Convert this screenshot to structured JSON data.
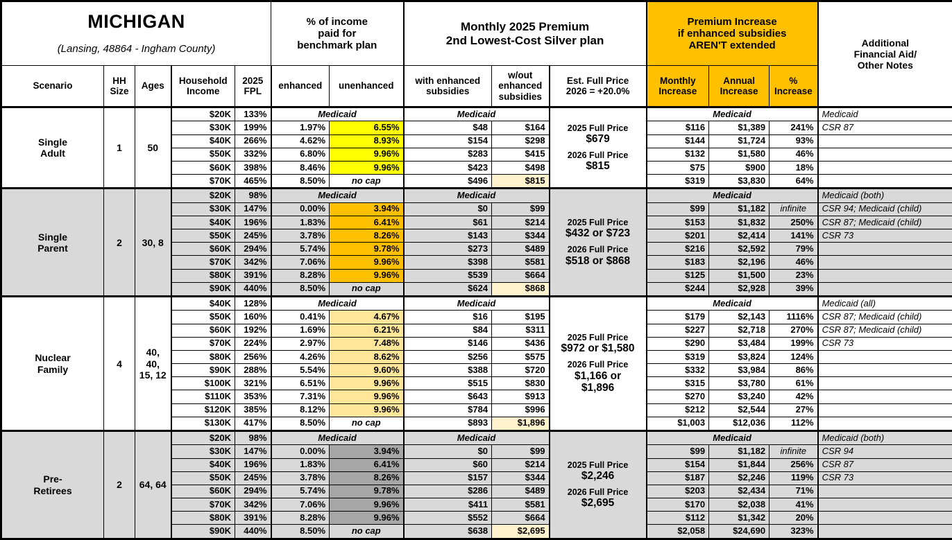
{
  "header": {
    "title": "MICHIGAN",
    "subtitle": "(Lansing, 48864 - Ingham County)",
    "group_income_pct": "% of income\npaid for\nbenchmark plan",
    "group_premium": "Monthly 2025 Premium\n2nd Lowest-Cost Silver plan",
    "group_increase": "Premium Increase\nif enhanced subsidies\nAREN'T extended",
    "notes": "Additional\nFinancial Aid/\nOther Notes",
    "col_scenario": "Scenario",
    "col_hh_size": "HH\nSize",
    "col_ages": "Ages",
    "col_income": "Household\nIncome",
    "col_fpl": "2025\nFPL",
    "col_enhanced": "enhanced",
    "col_unenhanced": "unenhanced",
    "col_with_sub": "with enhanced\nsubsidies",
    "col_wout_sub": "w/out\nenhanced\nsubsidies",
    "col_full_price": "Est. Full Price\n2026 = +20.0%",
    "col_monthly_inc": "Monthly\nIncrease",
    "col_annual_inc": "Annual\nIncrease",
    "col_pct_inc": "%\nIncrease"
  },
  "colors": {
    "accent_header": "#FFC000",
    "single_adult_highlight": "#FFFF00",
    "single_parent_highlight": "#FFC000",
    "nuclear_family_highlight": "#FFE699",
    "pre_retirees_highlight": "#A6A6A6",
    "band_gray": "#D9D9D9",
    "band_white": "#FFFFFF",
    "full_price_cream": "#FFF2CC"
  },
  "sections": [
    {
      "scenario": "Single\nAdult",
      "hh_size": "1",
      "ages": "50",
      "band_color": "#FFFFFF",
      "unenhanced_color": "#FFFF00",
      "medicaid": "Medicaid",
      "full_price": [
        {
          "label": "2025 Full Price",
          "amount": "$679"
        },
        {
          "label": "2026 Full Price",
          "amount": "$815"
        }
      ],
      "rows": [
        {
          "income": "$20K",
          "fpl": "133%",
          "medicaid_row": true,
          "note": "Medicaid"
        },
        {
          "income": "$30K",
          "fpl": "199%",
          "enh": "1.97%",
          "unenh": "6.55%",
          "with_sub": "$48",
          "wout_sub": "$164",
          "monthly": "$116",
          "annual": "$1,389",
          "pct": "241%",
          "note": "CSR 87"
        },
        {
          "income": "$40K",
          "fpl": "266%",
          "enh": "4.62%",
          "unenh": "8.93%",
          "with_sub": "$154",
          "wout_sub": "$298",
          "monthly": "$144",
          "annual": "$1,724",
          "pct": "93%",
          "note": ""
        },
        {
          "income": "$50K",
          "fpl": "332%",
          "enh": "6.80%",
          "unenh": "9.96%",
          "with_sub": "$283",
          "wout_sub": "$415",
          "monthly": "$132",
          "annual": "$1,580",
          "pct": "46%",
          "note": ""
        },
        {
          "income": "$60K",
          "fpl": "398%",
          "enh": "8.46%",
          "unenh": "9.96%",
          "with_sub": "$423",
          "wout_sub": "$498",
          "monthly": "$75",
          "annual": "$900",
          "pct": "18%",
          "note": ""
        },
        {
          "income": "$70K",
          "fpl": "465%",
          "enh": "8.50%",
          "unenh": "no cap",
          "nocap": true,
          "with_sub": "$496",
          "wout_sub": "$815",
          "monthly": "$319",
          "annual": "$3,830",
          "pct": "64%",
          "note": ""
        }
      ]
    },
    {
      "scenario": "Single\nParent",
      "hh_size": "2",
      "ages": "30, 8",
      "band_color": "#D9D9D9",
      "unenhanced_color": "#FFC000",
      "medicaid": "Medicaid",
      "full_price": [
        {
          "label": "2025 Full Price",
          "amount": "$432 or $723"
        },
        {
          "label": "2026 Full Price",
          "amount": "$518 or $868"
        }
      ],
      "rows": [
        {
          "income": "$20K",
          "fpl": "98%",
          "medicaid_row": true,
          "note": "Medicaid (both)"
        },
        {
          "income": "$30K",
          "fpl": "147%",
          "enh": "0.00%",
          "unenh": "3.94%",
          "with_sub": "$0",
          "wout_sub": "$99",
          "monthly": "$99",
          "annual": "$1,182",
          "pct": "infinite",
          "pct_infinite": true,
          "note": "CSR 94; Medicaid (child)"
        },
        {
          "income": "$40K",
          "fpl": "196%",
          "enh": "1.83%",
          "unenh": "6.41%",
          "with_sub": "$61",
          "wout_sub": "$214",
          "monthly": "$153",
          "annual": "$1,832",
          "pct": "250%",
          "note": "CSR 87; Medicaid (child)"
        },
        {
          "income": "$50K",
          "fpl": "245%",
          "enh": "3.78%",
          "unenh": "8.26%",
          "with_sub": "$143",
          "wout_sub": "$344",
          "monthly": "$201",
          "annual": "$2,414",
          "pct": "141%",
          "note": "CSR 73"
        },
        {
          "income": "$60K",
          "fpl": "294%",
          "enh": "5.74%",
          "unenh": "9.78%",
          "with_sub": "$273",
          "wout_sub": "$489",
          "monthly": "$216",
          "annual": "$2,592",
          "pct": "79%",
          "note": ""
        },
        {
          "income": "$70K",
          "fpl": "342%",
          "enh": "7.06%",
          "unenh": "9.96%",
          "with_sub": "$398",
          "wout_sub": "$581",
          "monthly": "$183",
          "annual": "$2,196",
          "pct": "46%",
          "note": ""
        },
        {
          "income": "$80K",
          "fpl": "391%",
          "enh": "8.28%",
          "unenh": "9.96%",
          "with_sub": "$539",
          "wout_sub": "$664",
          "monthly": "$125",
          "annual": "$1,500",
          "pct": "23%",
          "note": ""
        },
        {
          "income": "$90K",
          "fpl": "440%",
          "enh": "8.50%",
          "unenh": "no cap",
          "nocap": true,
          "with_sub": "$624",
          "wout_sub": "$868",
          "monthly": "$244",
          "annual": "$2,928",
          "pct": "39%",
          "note": ""
        }
      ]
    },
    {
      "scenario": "Nuclear\nFamily",
      "hh_size": "4",
      "ages": "40, 40,\n15, 12",
      "band_color": "#FFFFFF",
      "unenhanced_color": "#FFE699",
      "medicaid": "Medicaid",
      "full_price": [
        {
          "label": "2025 Full Price",
          "amount": "$972 or $1,580"
        },
        {
          "label": "2026 Full Price",
          "amount": "$1,166 or\n$1,896"
        }
      ],
      "rows": [
        {
          "income": "$40K",
          "fpl": "128%",
          "medicaid_row": true,
          "note": "Medicaid (all)"
        },
        {
          "income": "$50K",
          "fpl": "160%",
          "enh": "0.41%",
          "unenh": "4.67%",
          "with_sub": "$16",
          "wout_sub": "$195",
          "monthly": "$179",
          "annual": "$2,143",
          "pct": "1116%",
          "note": "CSR 87; Medicaid (child)"
        },
        {
          "income": "$60K",
          "fpl": "192%",
          "enh": "1.69%",
          "unenh": "6.21%",
          "with_sub": "$84",
          "wout_sub": "$311",
          "monthly": "$227",
          "annual": "$2,718",
          "pct": "270%",
          "note": "CSR 87; Medicaid (child)"
        },
        {
          "income": "$70K",
          "fpl": "224%",
          "enh": "2.97%",
          "unenh": "7.48%",
          "with_sub": "$146",
          "wout_sub": "$436",
          "monthly": "$290",
          "annual": "$3,484",
          "pct": "199%",
          "note": "CSR 73"
        },
        {
          "income": "$80K",
          "fpl": "256%",
          "enh": "4.26%",
          "unenh": "8.62%",
          "with_sub": "$256",
          "wout_sub": "$575",
          "monthly": "$319",
          "annual": "$3,824",
          "pct": "124%",
          "note": ""
        },
        {
          "income": "$90K",
          "fpl": "288%",
          "enh": "5.54%",
          "unenh": "9.60%",
          "with_sub": "$388",
          "wout_sub": "$720",
          "monthly": "$332",
          "annual": "$3,984",
          "pct": "86%",
          "note": ""
        },
        {
          "income": "$100K",
          "fpl": "321%",
          "enh": "6.51%",
          "unenh": "9.96%",
          "with_sub": "$515",
          "wout_sub": "$830",
          "monthly": "$315",
          "annual": "$3,780",
          "pct": "61%",
          "note": ""
        },
        {
          "income": "$110K",
          "fpl": "353%",
          "enh": "7.31%",
          "unenh": "9.96%",
          "with_sub": "$643",
          "wout_sub": "$913",
          "monthly": "$270",
          "annual": "$3,240",
          "pct": "42%",
          "note": ""
        },
        {
          "income": "$120K",
          "fpl": "385%",
          "enh": "8.12%",
          "unenh": "9.96%",
          "with_sub": "$784",
          "wout_sub": "$996",
          "monthly": "$212",
          "annual": "$2,544",
          "pct": "27%",
          "note": ""
        },
        {
          "income": "$130K",
          "fpl": "417%",
          "enh": "8.50%",
          "unenh": "no cap",
          "nocap": true,
          "with_sub": "$893",
          "wout_sub": "$1,896",
          "monthly": "$1,003",
          "annual": "$12,036",
          "pct": "112%",
          "note": ""
        }
      ]
    },
    {
      "scenario": "Pre-\nRetirees",
      "hh_size": "2",
      "ages": "64, 64",
      "band_color": "#D9D9D9",
      "unenhanced_color": "#A6A6A6",
      "medicaid": "Medicaid",
      "full_price": [
        {
          "label": "2025 Full Price",
          "amount": "$2,246"
        },
        {
          "label": "2026 Full Price",
          "amount": "$2,695"
        }
      ],
      "rows": [
        {
          "income": "$20K",
          "fpl": "98%",
          "medicaid_row": true,
          "note": "Medicaid (both)"
        },
        {
          "income": "$30K",
          "fpl": "147%",
          "enh": "0.00%",
          "unenh": "3.94%",
          "with_sub": "$0",
          "wout_sub": "$99",
          "monthly": "$99",
          "annual": "$1,182",
          "pct": "infinite",
          "pct_infinite": true,
          "note": "CSR 94"
        },
        {
          "income": "$40K",
          "fpl": "196%",
          "enh": "1.83%",
          "unenh": "6.41%",
          "with_sub": "$60",
          "wout_sub": "$214",
          "monthly": "$154",
          "annual": "$1,844",
          "pct": "256%",
          "note": "CSR 87"
        },
        {
          "income": "$50K",
          "fpl": "245%",
          "enh": "3.78%",
          "unenh": "8.26%",
          "with_sub": "$157",
          "wout_sub": "$344",
          "monthly": "$187",
          "annual": "$2,246",
          "pct": "119%",
          "note": "CSR 73"
        },
        {
          "income": "$60K",
          "fpl": "294%",
          "enh": "5.74%",
          "unenh": "9.78%",
          "with_sub": "$286",
          "wout_sub": "$489",
          "monthly": "$203",
          "annual": "$2,434",
          "pct": "71%",
          "note": ""
        },
        {
          "income": "$70K",
          "fpl": "342%",
          "enh": "7.06%",
          "unenh": "9.96%",
          "with_sub": "$411",
          "wout_sub": "$581",
          "monthly": "$170",
          "annual": "$2,038",
          "pct": "41%",
          "note": ""
        },
        {
          "income": "$80K",
          "fpl": "391%",
          "enh": "8.28%",
          "unenh": "9.96%",
          "with_sub": "$552",
          "wout_sub": "$664",
          "monthly": "$112",
          "annual": "$1,342",
          "pct": "20%",
          "note": ""
        },
        {
          "income": "$90K",
          "fpl": "440%",
          "enh": "8.50%",
          "unenh": "no cap",
          "nocap": true,
          "with_sub": "$638",
          "wout_sub": "$2,695",
          "monthly": "$2,058",
          "annual": "$24,690",
          "pct": "323%",
          "note": ""
        }
      ]
    }
  ]
}
